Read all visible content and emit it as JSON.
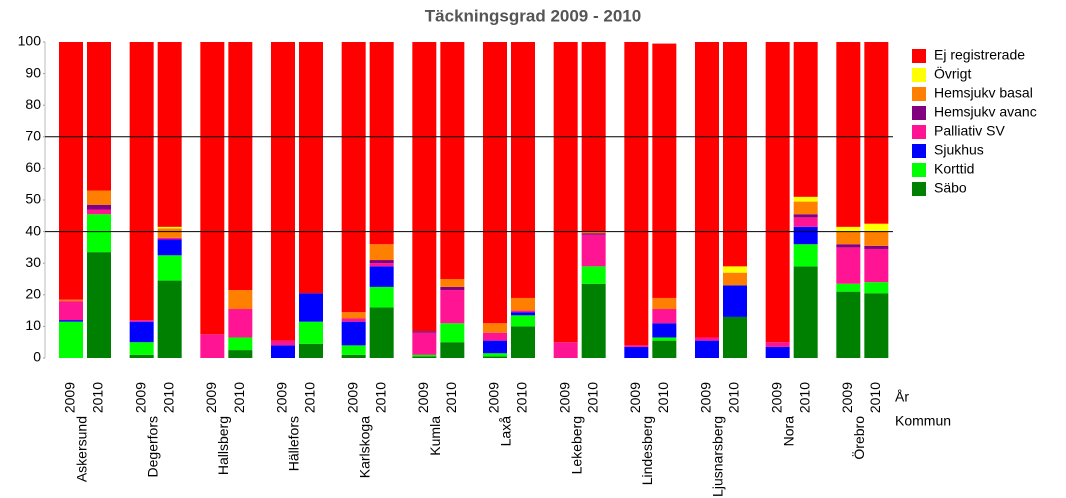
{
  "chart_data": {
    "type": "stacked-bar",
    "title": "Täckningsgrad 2009 - 2010",
    "categories": [
      "2009",
      "2010",
      "2009",
      "2010",
      "2009",
      "2010",
      "2009",
      "2010",
      "2009",
      "2010",
      "2009",
      "2010",
      "2009",
      "2010",
      "2009",
      "2010",
      "2009",
      "2010",
      "2009",
      "2010",
      "2009",
      "2010",
      "2009",
      "2010"
    ],
    "groups": [
      "Askersund",
      "Degerfors",
      "Hallsberg",
      "Hällefors",
      "Karlskoga",
      "Kumla",
      "Laxå",
      "Lekeberg",
      "Lindesberg",
      "Ljusnarsberg",
      "Nora",
      "Örebro"
    ],
    "x_label_inner": "År",
    "x_label_outer": "Kommun",
    "series": [
      {
        "name": "Säbo",
        "color": "#008000",
        "values": [
          0,
          33.5,
          1,
          24.5,
          0,
          2.5,
          0,
          4.5,
          1,
          16,
          0.5,
          5,
          0.5,
          10,
          0,
          23.5,
          0,
          5.5,
          0,
          13,
          0,
          29,
          21,
          20.5
        ]
      },
      {
        "name": "Korttid",
        "color": "#00ff00",
        "values": [
          11.5,
          12,
          4,
          8,
          0,
          4,
          0,
          7,
          3,
          6.5,
          0.5,
          6,
          1,
          3.5,
          0,
          5.5,
          0,
          1,
          0,
          0,
          0,
          7,
          2.5,
          3.5
        ]
      },
      {
        "name": "Sjukhus",
        "color": "#0000ff",
        "values": [
          0.5,
          0,
          6.5,
          5,
          0,
          0,
          4,
          9,
          7.5,
          6.5,
          0,
          0,
          4,
          1,
          0,
          0,
          3.5,
          4.5,
          5.5,
          10,
          3.5,
          5.5,
          0,
          0
        ]
      },
      {
        "name": "Palliativ SV",
        "color": "#ff1493",
        "values": [
          6,
          1.5,
          0.5,
          0.5,
          7.5,
          9,
          1.5,
          0,
          1,
          1,
          7,
          10.5,
          2.5,
          0.5,
          5,
          10,
          0.5,
          4.5,
          1,
          0,
          1.5,
          3,
          11.5,
          10.5
        ]
      },
      {
        "name": "Hemsjukv avanc",
        "color": "#800080",
        "values": [
          0,
          1.5,
          0,
          0,
          0,
          0,
          0,
          0,
          0,
          1,
          0.5,
          1,
          0,
          0,
          0,
          0.5,
          0,
          0,
          0,
          0,
          0,
          1,
          1,
          1
        ]
      },
      {
        "name": "Hemsjukv basal",
        "color": "#ff8000",
        "values": [
          0.5,
          4.5,
          0,
          3,
          0,
          6,
          0,
          0,
          2,
          5,
          0,
          2.5,
          3,
          4,
          0,
          0.5,
          0,
          3.5,
          0,
          4,
          0,
          4,
          4,
          4.5
        ]
      },
      {
        "name": "Övrigt",
        "color": "#ffff00",
        "values": [
          0,
          0,
          0,
          0.5,
          0,
          0,
          0,
          0,
          0,
          0,
          0,
          0,
          0,
          0,
          0,
          0,
          0,
          0,
          0,
          2,
          0,
          1.5,
          1.5,
          2.5
        ]
      },
      {
        "name": "Ej registrerade",
        "color": "#ff0000",
        "values": [
          81.5,
          47,
          88,
          58.5,
          92.5,
          78.5,
          94.5,
          79.5,
          85.5,
          64,
          91.5,
          75,
          89,
          81,
          95,
          60,
          96,
          80.5,
          93.5,
          71,
          95,
          49,
          58.5,
          57.5
        ]
      }
    ],
    "ylim": [
      0,
      100
    ],
    "yticks": [
      0,
      10,
      20,
      30,
      40,
      50,
      60,
      70,
      80,
      90,
      100
    ],
    "reference_lines": [
      40,
      70
    ],
    "legend": "right"
  }
}
